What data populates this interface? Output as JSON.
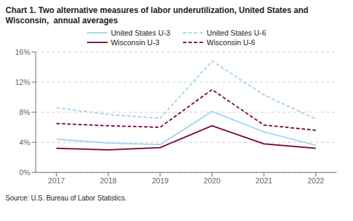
{
  "chart_data": {
    "type": "line",
    "title": "Chart 1. Two alternative measures of labor underutilization, United States and Wisconsin,  annual averages",
    "annotations": [
      "Source: U.S. Bureau of Labor Statistics."
    ],
    "x": [
      2017,
      2018,
      2019,
      2020,
      2021,
      2022
    ],
    "series": [
      {
        "name": "United States U-3",
        "color": "#a8d4f0",
        "line_style": "solid",
        "values": [
          4.4,
          3.9,
          3.7,
          8.1,
          5.4,
          3.6
        ]
      },
      {
        "name": "United States U-6",
        "color": "#a8d4f0",
        "line_style": "dashed",
        "values": [
          8.6,
          7.7,
          7.2,
          14.8,
          10.3,
          7.1
        ]
      },
      {
        "name": "Wisconsin U-3",
        "color": "#7b1040",
        "line_style": "solid",
        "values": [
          3.2,
          3.0,
          3.3,
          6.2,
          3.8,
          3.2
        ]
      },
      {
        "name": "Wisconsin U-6",
        "color": "#7b1040",
        "line_style": "dashed",
        "values": [
          6.5,
          6.2,
          6.0,
          11.0,
          6.3,
          5.6
        ]
      }
    ],
    "xlim": [
      2016.6,
      2022.4
    ],
    "xticks": [
      2017,
      2018,
      2019,
      2020,
      2021,
      2022
    ],
    "ylim": [
      0,
      16
    ],
    "yticks": [
      {
        "value": 0,
        "label": "0%"
      },
      {
        "value": 4,
        "label": "4%"
      },
      {
        "value": 8,
        "label": "8%"
      },
      {
        "value": 12,
        "label": "12%"
      },
      {
        "value": 16,
        "label": "16%"
      }
    ],
    "grid": true,
    "legend": "top"
  }
}
